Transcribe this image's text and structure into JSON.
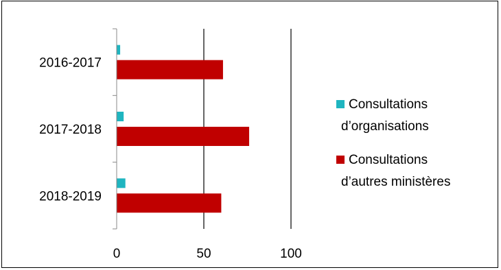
{
  "chart_data": {
    "type": "bar",
    "orientation": "horizontal",
    "categories": [
      "2016-2017",
      "2017-2018",
      "2018-2019"
    ],
    "series": [
      {
        "name": "Consultations d’organisations",
        "legend_lines": [
          "Consultations",
          "d’organisations"
        ],
        "color": "#1fb5c0",
        "values": [
          2,
          4,
          5
        ]
      },
      {
        "name": "Consultations d’autres ministères",
        "legend_lines": [
          "Consultations",
          "d’autres ministères"
        ],
        "color": "#c00000",
        "values": [
          61,
          76,
          60
        ]
      }
    ],
    "xlim": [
      0,
      100
    ],
    "xticks": [
      "0",
      "50",
      "100"
    ],
    "title": "",
    "xlabel": "",
    "ylabel": "",
    "grid": "vertical",
    "legend_position": "right"
  }
}
